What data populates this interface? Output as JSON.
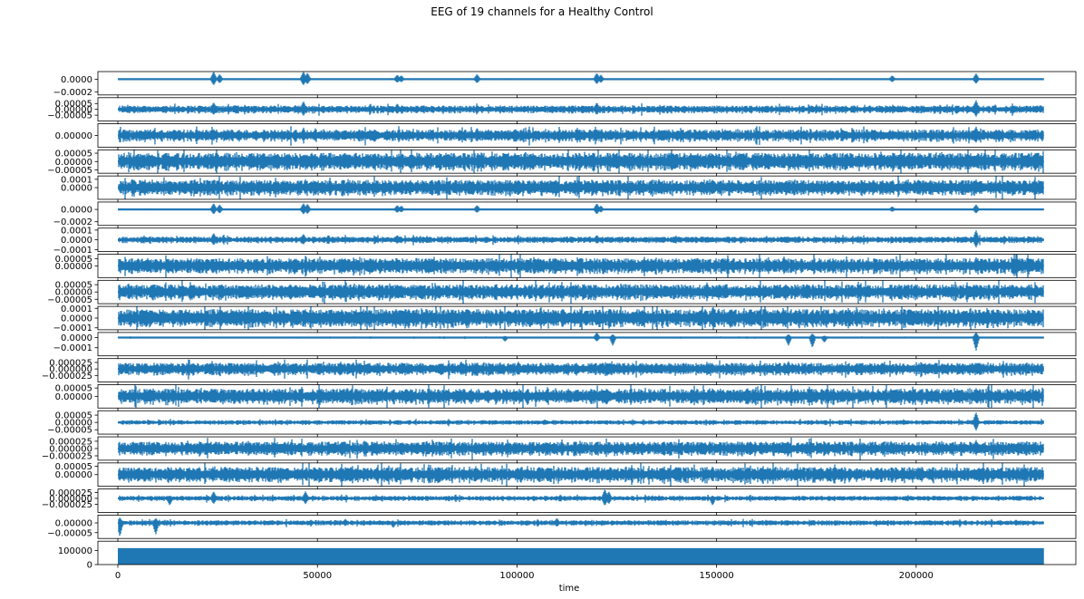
{
  "chart_data": {
    "type": "line",
    "title": "EEG of 19 channels for a Healthy Control",
    "xlabel": "time",
    "xlim": [
      -5000,
      240000
    ],
    "x_ticks": [
      0,
      50000,
      100000,
      150000,
      200000
    ],
    "x_tick_labels": [
      "0",
      "50000",
      "100000",
      "150000",
      "200000"
    ],
    "n_samples": 232000,
    "line_color": "#1f77b4",
    "grid": false,
    "panels": [
      {
        "ylim": [
          -0.00025,
          0.00012
        ],
        "yticks": [
          0.0,
          -0.0002
        ],
        "ytick_labels": [
          "0.0000",
          "−0.0002"
        ],
        "amp": 7e-06,
        "spikes": [
          [
            24000,
            0.00012
          ],
          [
            25500,
            8e-05
          ],
          [
            46500,
            0.00012
          ],
          [
            47500,
            0.0001
          ],
          [
            70000,
            7e-05
          ],
          [
            71000,
            6e-05
          ],
          [
            90000,
            8e-05
          ],
          [
            120000,
            0.0001
          ],
          [
            121000,
            7e-05
          ],
          [
            194000,
            6e-05
          ],
          [
            215000,
            9e-05
          ]
        ]
      },
      {
        "ylim": [
          -0.0001,
          0.0001
        ],
        "yticks": [
          5e-05,
          0.0,
          -5e-05
        ],
        "ytick_labels": [
          "0.00005",
          "0.00000",
          "−0.00005"
        ],
        "amp": 2.5e-05,
        "spikes": [
          [
            24000,
            6e-05
          ],
          [
            46500,
            7e-05
          ],
          [
            70000,
            5e-05
          ],
          [
            120000,
            6e-05
          ],
          [
            215000,
            8e-05
          ]
        ]
      },
      {
        "ylim": [
          -9e-05,
          9e-05
        ],
        "yticks": [
          0.0
        ],
        "ytick_labels": [
          "0.00000"
        ],
        "amp": 3.5e-05,
        "spikes": [
          [
            24000,
            5e-05
          ],
          [
            46500,
            6e-05
          ],
          [
            90000,
            6e-05
          ],
          [
            120000,
            5e-05
          ],
          [
            215000,
            7e-05
          ]
        ]
      },
      {
        "ylim": [
          -7e-05,
          7e-05
        ],
        "yticks": [
          5e-05,
          0.0,
          -5e-05
        ],
        "ytick_labels": [
          "0.00005",
          "0.00000",
          "−0.00005"
        ],
        "amp": 4e-05,
        "spikes": [
          [
            57000,
            5e-05
          ],
          [
            140000,
            5e-05
          ],
          [
            198000,
            4e-05
          ]
        ]
      },
      {
        "ylim": [
          -0.00014,
          0.00014
        ],
        "yticks": [
          0.0001,
          0.0
        ],
        "ytick_labels": [
          "0.0001",
          "0.0000"
        ],
        "amp": 7e-05,
        "spikes": [
          [
            24000,
            0.0001
          ],
          [
            47000,
            0.0001
          ],
          [
            149000,
            0.0001
          ],
          [
            215000,
            0.0001
          ]
        ]
      },
      {
        "ylim": [
          -0.00026,
          0.00012
        ],
        "yticks": [
          0.0,
          -0.0002
        ],
        "ytick_labels": [
          "0.0000",
          "−0.0002"
        ],
        "amp": 6e-06,
        "spikes": [
          [
            24000,
            0.0001
          ],
          [
            25500,
            8e-05
          ],
          [
            46500,
            0.0001
          ],
          [
            47500,
            9e-05
          ],
          [
            70000,
            7e-05
          ],
          [
            71000,
            6e-05
          ],
          [
            90000,
            7e-05
          ],
          [
            120000,
            0.0001
          ],
          [
            121000,
            6e-05
          ],
          [
            194000,
            5e-05
          ],
          [
            215000,
            8e-05
          ]
        ]
      },
      {
        "ylim": [
          -0.00012,
          0.00012
        ],
        "yticks": [
          0.0001,
          0.0,
          -0.0001
        ],
        "ytick_labels": [
          "0.0001",
          "0.0000",
          "−0.0001"
        ],
        "amp": 2.5e-05,
        "spikes": [
          [
            24000,
            7e-05
          ],
          [
            46500,
            6e-05
          ],
          [
            70000,
            5e-05
          ],
          [
            120000,
            5e-05
          ],
          [
            215000,
            0.0001
          ]
        ]
      },
      {
        "ylim": [
          -8e-05,
          8e-05
        ],
        "yticks": [
          5e-05,
          0.0
        ],
        "ytick_labels": [
          "0.00005",
          "0.00000"
        ],
        "amp": 4e-05,
        "spikes": [
          [
            57000,
            5e-05
          ],
          [
            90000,
            5e-05
          ],
          [
            215000,
            6e-05
          ]
        ]
      },
      {
        "ylim": [
          -8e-05,
          8e-05
        ],
        "yticks": [
          5e-05,
          0.0,
          -5e-05
        ],
        "ytick_labels": [
          "0.00005",
          "0.00000",
          "−0.00005"
        ],
        "amp": 4e-05,
        "spikes": [
          [
            57000,
            5e-05
          ],
          [
            150000,
            5e-05
          ],
          [
            215000,
            5e-05
          ]
        ]
      },
      {
        "ylim": [
          -0.00012,
          0.00012
        ],
        "yticks": [
          0.0001,
          0.0,
          -0.0001
        ],
        "ytick_labels": [
          "0.0001",
          "0.0000",
          "−0.0001"
        ],
        "amp": 7e-05,
        "spikes": [
          [
            24000,
            0.0001
          ],
          [
            149000,
            0.00011
          ],
          [
            150500,
            0.0001
          ],
          [
            170000,
            8e-05
          ]
        ]
      },
      {
        "ylim": [
          -0.00018,
          5e-05
        ],
        "yticks": [
          0.0,
          -0.0001
        ],
        "ytick_labels": [
          "0.0000",
          "−0.0001"
        ],
        "amp": 6e-06,
        "spikes": [
          [
            97000,
            -4e-05
          ],
          [
            120000,
            5e-05
          ],
          [
            124000,
            -8e-05
          ],
          [
            168000,
            -8e-05
          ],
          [
            174000,
            -0.0001
          ],
          [
            177000,
            -5e-05
          ],
          [
            215000,
            -0.00013
          ]
        ]
      },
      {
        "ylim": [
          -5e-05,
          4e-05
        ],
        "yticks": [
          2.5e-05,
          0.0,
          -2.5e-05
        ],
        "ytick_labels": [
          "0.000025",
          "0.000000",
          "−0.000025"
        ],
        "amp": 1.8e-05,
        "spikes": [
          [
            86000,
            3e-05
          ],
          [
            168000,
            3e-05
          ],
          [
            215000,
            2e-05
          ]
        ]
      },
      {
        "ylim": [
          -7e-05,
          7e-05
        ],
        "yticks": [
          5e-05,
          0.0
        ],
        "ytick_labels": [
          "0.00005",
          "0.00000"
        ],
        "amp": 3.5e-05,
        "spikes": [
          [
            78000,
            5e-05
          ],
          [
            149000,
            5e-05
          ],
          [
            215000,
            5e-05
          ]
        ]
      },
      {
        "ylim": [
          -8e-05,
          8e-05
        ],
        "yticks": [
          5e-05,
          0.0,
          -5e-05
        ],
        "ytick_labels": [
          "0.00005",
          "0.00000",
          "−0.00005"
        ],
        "amp": 1.2e-05,
        "spikes": [
          [
            107000,
            2e-05
          ],
          [
            215000,
            7e-05
          ]
        ]
      },
      {
        "ylim": [
          -4e-05,
          4e-05
        ],
        "yticks": [
          2.5e-05,
          0.0,
          -2.5e-05
        ],
        "ytick_labels": [
          "0.000025",
          "0.000000",
          "−0.000025"
        ],
        "amp": 1.8e-05,
        "spikes": [
          [
            79000,
            2.5e-05
          ],
          [
            120000,
            2.5e-05
          ],
          [
            215000,
            3e-05
          ]
        ]
      },
      {
        "ylim": [
          -7e-05,
          7e-05
        ],
        "yticks": [
          5e-05,
          0.0
        ],
        "ytick_labels": [
          "0.00005",
          "0.00000"
        ],
        "amp": 3.5e-05,
        "spikes": [
          [
            149000,
            5e-05
          ],
          [
            170000,
            4e-05
          ]
        ]
      },
      {
        "ylim": [
          -6e-05,
          4e-05
        ],
        "yticks": [
          2.5e-05,
          0.0,
          -2.5e-05
        ],
        "ytick_labels": [
          "0.000025",
          "0.000000",
          "−0.000025"
        ],
        "amp": 8e-06,
        "spikes": [
          [
            13000,
            -3e-05
          ],
          [
            24000,
            3e-05
          ],
          [
            47000,
            3e-05
          ],
          [
            122000,
            4e-05
          ],
          [
            123000,
            3e-05
          ],
          [
            149000,
            -3e-05
          ]
        ]
      },
      {
        "ylim": [
          -8e-05,
          4e-05
        ],
        "yticks": [
          0.0,
          -5e-05
        ],
        "ytick_labels": [
          "0.00000",
          "−0.00005"
        ],
        "amp": 1e-05,
        "spikes": [
          [
            500,
            -7e-05
          ],
          [
            9500,
            -6e-05
          ],
          [
            57000,
            2e-05
          ],
          [
            69000,
            -2.5e-05
          ],
          [
            110000,
            2.5e-05
          ]
        ]
      },
      {
        "kind": "fill",
        "fill_value": 116000,
        "ylim": [
          0,
          165000
        ],
        "yticks": [
          100000,
          0
        ],
        "ytick_labels": [
          "100000",
          "0"
        ]
      }
    ]
  }
}
